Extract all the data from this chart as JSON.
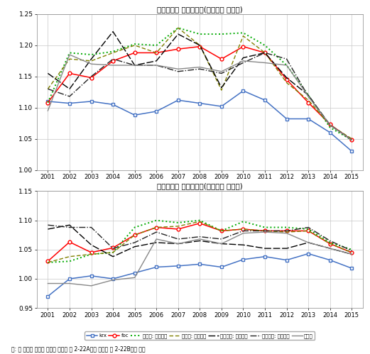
{
  "years": [
    2001,
    2002,
    2003,
    2004,
    2005,
    2006,
    2007,
    2008,
    2009,
    2010,
    2011,
    2012,
    2013,
    2014,
    2015
  ],
  "title1": "사업전략별 매출성장률(기업군별 중간치)",
  "title2": "사업전략별 고용성장률(기업군별 중간치)",
  "note": "주: 위 그림과 관련된 통계는 《부록 표 2-22A》와 《부록 표 2-22B》를 참조",
  "series1": {
    "krx": [
      1.11,
      1.107,
      1.11,
      1.105,
      1.088,
      1.094,
      1.112,
      1.107,
      1.102,
      1.127,
      1.112,
      1.082,
      1.082,
      1.06,
      1.03
    ],
    "foc": [
      1.108,
      1.155,
      1.148,
      1.175,
      1.188,
      1.188,
      1.194,
      1.198,
      1.178,
      1.198,
      1.188,
      1.145,
      1.108,
      1.073,
      1.048
    ],
    "diff_broad": [
      1.108,
      1.188,
      1.185,
      1.19,
      1.202,
      1.2,
      1.228,
      1.218,
      1.218,
      1.22,
      1.2,
      1.168,
      1.12,
      1.068,
      1.048
    ],
    "diff_narrow": [
      1.13,
      1.178,
      1.175,
      1.188,
      1.2,
      1.188,
      1.228,
      1.2,
      1.128,
      1.215,
      1.188,
      1.14,
      1.112,
      1.072,
      1.05
    ],
    "cost_broad": [
      1.155,
      1.13,
      1.178,
      1.222,
      1.168,
      1.175,
      1.218,
      1.2,
      1.132,
      1.18,
      1.188,
      1.148,
      1.12,
      1.072,
      1.048
    ],
    "cost_narrow": [
      1.13,
      1.118,
      1.15,
      1.178,
      1.168,
      1.168,
      1.158,
      1.162,
      1.155,
      1.172,
      1.188,
      1.178,
      1.118,
      1.072,
      1.048
    ],
    "no_answer": [
      1.095,
      1.185,
      1.17,
      1.168,
      1.168,
      1.168,
      1.162,
      1.165,
      1.158,
      1.175,
      1.172,
      1.168,
      1.118,
      1.072,
      1.048
    ]
  },
  "series2": {
    "krx": [
      0.97,
      1.0,
      1.005,
      1.0,
      1.01,
      1.02,
      1.022,
      1.025,
      1.02,
      1.033,
      1.038,
      1.032,
      1.043,
      1.032,
      1.018
    ],
    "foc": [
      1.03,
      1.063,
      1.045,
      1.053,
      1.075,
      1.088,
      1.085,
      1.095,
      1.082,
      1.085,
      1.082,
      1.082,
      1.082,
      1.06,
      1.045
    ],
    "diff_broad": [
      1.028,
      1.03,
      1.042,
      1.045,
      1.088,
      1.1,
      1.096,
      1.1,
      1.082,
      1.098,
      1.088,
      1.088,
      1.085,
      1.062,
      1.05
    ],
    "diff_narrow": [
      1.028,
      1.038,
      1.042,
      1.045,
      1.075,
      1.088,
      1.09,
      1.098,
      1.082,
      1.085,
      1.082,
      1.08,
      1.082,
      1.06,
      1.045
    ],
    "cost_broad": [
      1.085,
      1.092,
      1.058,
      1.038,
      1.055,
      1.062,
      1.06,
      1.065,
      1.06,
      1.058,
      1.052,
      1.052,
      1.062,
      1.052,
      1.042
    ],
    "cost_narrow": [
      1.092,
      1.088,
      1.088,
      1.052,
      1.062,
      1.08,
      1.068,
      1.072,
      1.068,
      1.082,
      1.082,
      1.082,
      1.088,
      1.065,
      1.048
    ],
    "no_answer": [
      0.992,
      0.992,
      0.988,
      0.998,
      1.002,
      1.068,
      1.06,
      1.068,
      1.06,
      1.078,
      1.08,
      1.078,
      1.062,
      1.052,
      1.042
    ]
  },
  "legend_labels": [
    "krx",
    "foc",
    "차별화: 범용시장",
    "차별화: 한정시장",
    "원가우위: 범용시장",
    "원가우위: 한정시장",
    "무응답"
  ],
  "ylim1": [
    1.0,
    1.25
  ],
  "ylim2": [
    0.95,
    1.15
  ],
  "yticks1": [
    1.0,
    1.05,
    1.1,
    1.15,
    1.2,
    1.25
  ],
  "yticks2": [
    0.95,
    1.0,
    1.05,
    1.1,
    1.15
  ]
}
